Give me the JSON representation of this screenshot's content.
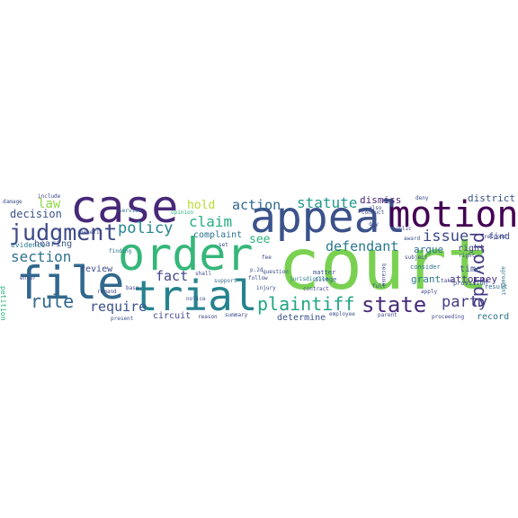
{
  "words": [
    {
      "text": "court",
      "color": "#7ad151"
    },
    {
      "text": "appeal",
      "color": "#3b528b"
    },
    {
      "text": "case",
      "color": "#482878"
    },
    {
      "text": "order",
      "color": "#35b779"
    },
    {
      "text": "file",
      "color": "#31688e"
    },
    {
      "text": "trial",
      "color": "#26828e"
    },
    {
      "text": "motion",
      "color": "#440154"
    },
    {
      "text": "judgment",
      "color": "#3e4989"
    },
    {
      "text": "plaintiff",
      "color": "#21a585"
    },
    {
      "text": "state",
      "color": "#472c7a"
    },
    {
      "text": "provide",
      "color": "#443983"
    },
    {
      "text": "section",
      "color": "#2c728e"
    },
    {
      "text": "claim",
      "color": "#27ad81"
    },
    {
      "text": "action",
      "color": "#31688e"
    },
    {
      "text": "policy",
      "color": "#25858e"
    },
    {
      "text": "statute",
      "color": "#1f9a8a"
    },
    {
      "text": "defendant",
      "color": "#2a788e"
    },
    {
      "text": "issue",
      "color": "#3e4989"
    },
    {
      "text": "party",
      "color": "#433e85"
    },
    {
      "text": "rule",
      "color": "#31688e"
    },
    {
      "text": "require",
      "color": "#3b528b"
    },
    {
      "text": "fact",
      "color": "#414487"
    },
    {
      "text": "law",
      "color": "#8fd744"
    },
    {
      "text": "decision",
      "color": "#3b528b"
    },
    {
      "text": "hold",
      "color": "#b5de2b"
    },
    {
      "text": "see",
      "color": "#2db27d"
    },
    {
      "text": "argue",
      "color": "#2c728e"
    },
    {
      "text": "dismiss",
      "color": "#482475"
    },
    {
      "text": "attorney",
      "color": "#46337e"
    },
    {
      "text": "record",
      "color": "#2c728e"
    },
    {
      "text": "hearing",
      "color": "#3b528b"
    },
    {
      "text": "review",
      "color": "#3e4989"
    },
    {
      "text": "grant",
      "color": "#2a788e"
    },
    {
      "text": "complaint",
      "color": "#2c728e"
    },
    {
      "text": "determine",
      "color": "#3b528b"
    },
    {
      "text": "circuit",
      "color": "#3e4989"
    },
    {
      "text": "district",
      "color": "#3b528b"
    },
    {
      "text": "evidence",
      "color": "#2a788e"
    },
    {
      "text": "petition",
      "color": "#2db27d"
    },
    {
      "text": "time",
      "color": "#3b528b"
    },
    {
      "text": "right",
      "color": "#414487"
    },
    {
      "text": "find",
      "color": "#3e4989"
    },
    {
      "text": "consider",
      "color": "#2c728e"
    },
    {
      "text": "provision",
      "color": "#3b528b"
    },
    {
      "text": "result",
      "color": "#31688e"
    },
    {
      "text": "jurisdiction",
      "color": "#2a788e"
    },
    {
      "text": "follow",
      "color": "#3e4989"
    },
    {
      "text": "matter",
      "color": "#3b528b"
    },
    {
      "text": "allege",
      "color": "#31688e"
    },
    {
      "text": "opinion",
      "color": "#2db27d"
    },
    {
      "text": "service",
      "color": "#31688e"
    },
    {
      "text": "shall",
      "color": "#3e4989"
    },
    {
      "text": "support",
      "color": "#31688e"
    },
    {
      "text": "injury",
      "color": "#3e4989"
    },
    {
      "text": "summary",
      "color": "#3e4989"
    },
    {
      "text": "notice",
      "color": "#3b528b"
    },
    {
      "text": "present",
      "color": "#3b528b"
    },
    {
      "text": "employee",
      "color": "#3b528b"
    },
    {
      "text": "proceeding",
      "color": "#414487"
    },
    {
      "text": "apply",
      "color": "#3e4989"
    },
    {
      "text": "agreement",
      "color": "#2c728e"
    },
    {
      "text": "include",
      "color": "#3e4989"
    },
    {
      "text": "benefit",
      "color": "#3e4989"
    },
    {
      "text": "finding",
      "color": "#2c728e"
    },
    {
      "text": "enter",
      "color": "#3e4989"
    },
    {
      "text": "damage",
      "color": "#3b528b"
    },
    {
      "text": "deny",
      "color": "#3e4989"
    },
    {
      "text": "award",
      "color": "#3b528b"
    },
    {
      "text": "public",
      "color": "#3e4989"
    },
    {
      "text": "full",
      "color": "#3b528b"
    },
    {
      "text": "contract",
      "color": "#3e4989"
    },
    {
      "text": "because",
      "color": "#3e4989"
    },
    {
      "text": "remand",
      "color": "#3e4989"
    },
    {
      "text": "question",
      "color": "#3e4989"
    },
    {
      "text": "day",
      "color": "#3e4989"
    },
    {
      "text": "fee",
      "color": "#3e4989"
    },
    {
      "text": "p.2d",
      "color": "#3b528b"
    },
    {
      "text": "base",
      "color": "#3e4989"
    },
    {
      "text": "reason",
      "color": "#3e4989"
    },
    {
      "text": "respond",
      "color": "#3e4989"
    },
    {
      "text": "set",
      "color": "#3e4989"
    },
    {
      "text": "conduct",
      "color": "#3e4989"
    },
    {
      "text": "subject",
      "color": "#3e4989"
    },
    {
      "text": "right",
      "color": "#3e4989"
    },
    {
      "text": "also",
      "color": "#3e4989"
    },
    {
      "text": "take",
      "color": "#3e4989"
    },
    {
      "text": "parent",
      "color": "#3e4989"
    }
  ]
}
